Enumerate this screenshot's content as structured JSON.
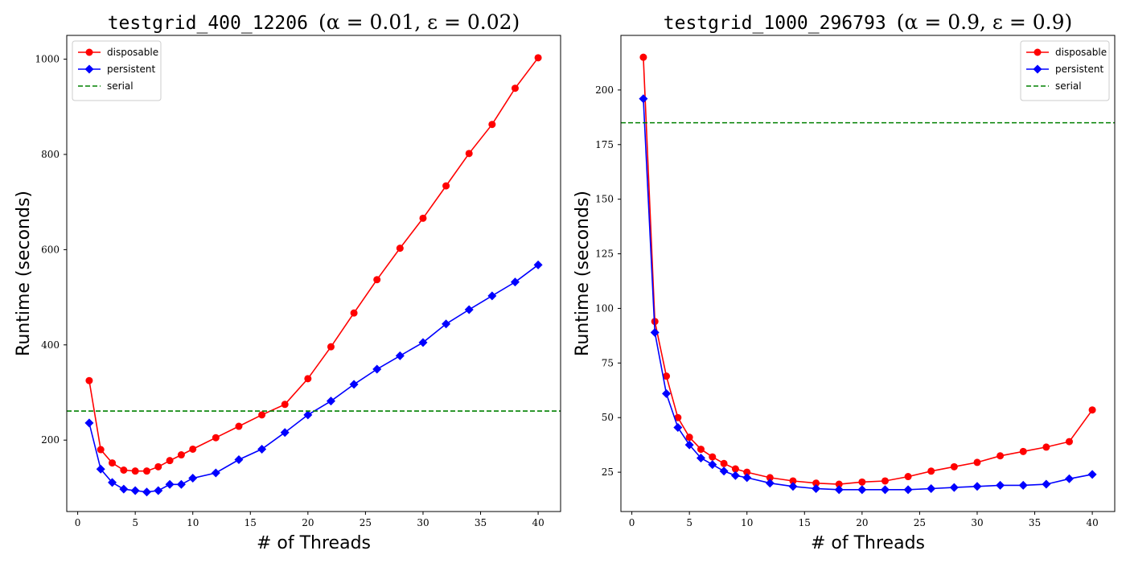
{
  "chart_data": [
    {
      "type": "line",
      "title": "testgrid_400_12206",
      "title_params": "(α = 0.01, ε = 0.02)",
      "xlabel": "# of Threads",
      "ylabel": "Runtime (seconds)",
      "xlim": [
        -0.95,
        41.95
      ],
      "ylim": [
        50,
        1050
      ],
      "xticks": [
        0,
        5,
        10,
        15,
        20,
        25,
        30,
        35,
        40
      ],
      "yticks": [
        200,
        400,
        600,
        800,
        1000
      ],
      "legend_position": "upper left",
      "grid": false,
      "series": [
        {
          "name": "disposable",
          "color": "#ff0000",
          "marker": "circle",
          "x": [
            1,
            2,
            3,
            4,
            5,
            6,
            7,
            8,
            9,
            10,
            12,
            14,
            16,
            18,
            20,
            22,
            24,
            26,
            28,
            30,
            32,
            34,
            36,
            38,
            40
          ],
          "y": [
            325,
            180,
            152,
            137,
            135,
            135,
            144,
            157,
            169,
            181,
            205,
            229,
            253,
            275,
            329,
            396,
            467,
            537,
            603,
            666,
            734,
            802,
            863,
            939,
            1003
          ]
        },
        {
          "name": "persistent",
          "color": "#0000ff",
          "marker": "diamond",
          "x": [
            1,
            2,
            3,
            4,
            5,
            6,
            7,
            8,
            9,
            10,
            12,
            14,
            16,
            18,
            20,
            22,
            24,
            26,
            28,
            30,
            32,
            34,
            36,
            38,
            40
          ],
          "y": [
            236,
            139,
            111,
            97,
            94,
            91,
            94,
            107,
            107,
            120,
            131,
            159,
            181,
            216,
            253,
            282,
            317,
            349,
            377,
            405,
            444,
            474,
            503,
            532,
            568
          ]
        },
        {
          "name": "serial",
          "color": "#008000",
          "style": "dashed",
          "y": 261
        }
      ]
    },
    {
      "type": "line",
      "title": "testgrid_1000_296793",
      "title_params": "(α = 0.9, ε = 0.9)",
      "xlabel": "# of Threads",
      "ylabel": "Runtime (seconds)",
      "xlim": [
        -0.95,
        41.95
      ],
      "ylim": [
        7,
        225
      ],
      "xticks": [
        0,
        5,
        10,
        15,
        20,
        25,
        30,
        35,
        40
      ],
      "yticks": [
        25,
        50,
        75,
        100,
        125,
        150,
        175,
        200
      ],
      "legend_position": "upper right",
      "grid": false,
      "series": [
        {
          "name": "disposable",
          "color": "#ff0000",
          "marker": "circle",
          "x": [
            1,
            2,
            3,
            4,
            5,
            6,
            7,
            8,
            9,
            10,
            12,
            14,
            16,
            18,
            20,
            22,
            24,
            26,
            28,
            30,
            32,
            34,
            36,
            38,
            40
          ],
          "y": [
            215,
            94,
            69,
            50,
            41,
            35.5,
            32,
            29,
            26.5,
            25,
            22.5,
            21,
            20,
            19.5,
            20.5,
            21,
            23,
            25.5,
            27.5,
            29.5,
            32.5,
            34.5,
            36.5,
            39,
            53.5
          ]
        },
        {
          "name": "persistent",
          "color": "#0000ff",
          "marker": "diamond",
          "x": [
            1,
            2,
            3,
            4,
            5,
            6,
            7,
            8,
            9,
            10,
            12,
            14,
            16,
            18,
            20,
            22,
            24,
            26,
            28,
            30,
            32,
            34,
            36,
            38,
            40
          ],
          "y": [
            196,
            89,
            61,
            45.5,
            37.5,
            31.5,
            28.5,
            25.5,
            23.5,
            22.5,
            20,
            18.5,
            17.5,
            17,
            17,
            17,
            17,
            17.5,
            18,
            18.5,
            19,
            19,
            19.5,
            22,
            24
          ]
        },
        {
          "name": "serial",
          "color": "#008000",
          "style": "dashed",
          "y": 185
        }
      ]
    }
  ]
}
